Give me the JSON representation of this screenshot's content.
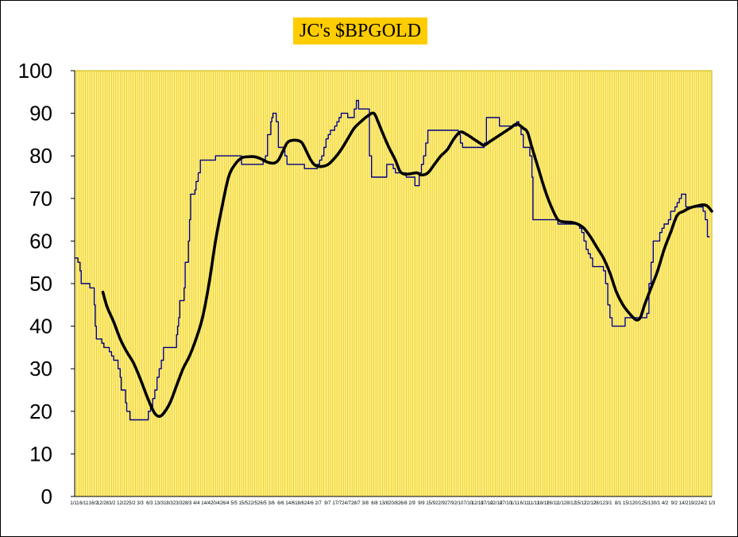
{
  "chart_data": {
    "type": "line",
    "title": "JC's $BPGOLD",
    "xlabel": "",
    "ylabel": "",
    "ylim": [
      0,
      100
    ],
    "yticks": [
      0,
      10,
      20,
      30,
      40,
      50,
      60,
      70,
      80,
      90,
      100
    ],
    "grid": "vertical",
    "plot_background": "#ffee88",
    "title_background": "#ffcc00",
    "xtick_labels": [
      "1/11",
      "6/11",
      "16/2",
      "12/28",
      "3/2",
      "12/2",
      "25/2",
      "3/3",
      "6/3",
      "13/3",
      "18/3",
      "23/3",
      "28/3",
      "4/4",
      "14/4",
      "20/4",
      "26/4",
      "5/5",
      "15/5",
      "22/5",
      "26/5",
      "3/6",
      "6/6",
      "14/6",
      "18/6",
      "24/6",
      "2/7",
      "9/7",
      "17/7",
      "24/7",
      "28/7",
      "3/8",
      "6/8",
      "13/8",
      "20/8",
      "26/8",
      "2/9",
      "9/9",
      "15/9",
      "22/9",
      "27/9",
      "2/10",
      "7/10",
      "12/10",
      "17/10",
      "22/10",
      "27/10",
      "1/11",
      "6/11",
      "11/11",
      "18/11",
      "26/11",
      "1/12",
      "8/12",
      "15/12",
      "22/12",
      "28/12",
      "3/1",
      "8/1",
      "15/1",
      "20/1",
      "25/1",
      "30/1",
      "4/2",
      "9/2",
      "14/2",
      "19/2",
      "24/2",
      "1/3"
    ],
    "series": [
      {
        "color": "#000080",
        "style": "step",
        "points": [
          [
            0,
            56
          ],
          [
            1.5,
            55
          ],
          [
            2.5,
            53
          ],
          [
            3,
            50
          ],
          [
            6,
            50
          ],
          [
            7,
            49
          ],
          [
            8,
            49
          ],
          [
            9,
            45
          ],
          [
            9.5,
            40
          ],
          [
            10,
            37
          ],
          [
            12,
            37
          ],
          [
            12.5,
            36
          ],
          [
            13.5,
            35
          ],
          [
            15,
            35
          ],
          [
            16,
            34
          ],
          [
            17,
            33
          ],
          [
            18,
            32
          ],
          [
            19,
            32
          ],
          [
            20,
            30
          ],
          [
            21,
            28
          ],
          [
            21.5,
            25
          ],
          [
            22.5,
            25
          ],
          [
            23.5,
            22
          ],
          [
            24,
            20
          ],
          [
            25,
            20
          ],
          [
            25.5,
            18
          ],
          [
            33,
            18
          ],
          [
            34,
            20
          ],
          [
            35,
            21
          ],
          [
            36,
            23
          ],
          [
            37,
            25
          ],
          [
            38,
            28
          ],
          [
            39,
            30
          ],
          [
            40,
            32
          ],
          [
            41,
            35
          ],
          [
            45,
            35
          ],
          [
            46,
            35
          ],
          [
            47,
            38
          ],
          [
            47.5,
            40
          ],
          [
            48,
            42
          ],
          [
            48.5,
            46
          ],
          [
            50,
            46
          ],
          [
            50.5,
            49
          ],
          [
            51,
            55
          ],
          [
            52,
            55
          ],
          [
            52.5,
            60
          ],
          [
            53,
            65
          ],
          [
            53.5,
            71
          ],
          [
            55,
            71
          ],
          [
            55.5,
            72
          ],
          [
            56,
            74
          ],
          [
            57,
            76
          ],
          [
            58,
            79
          ],
          [
            64,
            79
          ],
          [
            65,
            80
          ],
          [
            76,
            80
          ],
          [
            77,
            78
          ],
          [
            86,
            78
          ],
          [
            87,
            79
          ],
          [
            88,
            80
          ],
          [
            89,
            85
          ],
          [
            90,
            85
          ],
          [
            90.5,
            88
          ],
          [
            91,
            89
          ],
          [
            91.5,
            90
          ],
          [
            92,
            90
          ],
          [
            93,
            88
          ],
          [
            94,
            82
          ],
          [
            96,
            82
          ],
          [
            97,
            80
          ],
          [
            98,
            78
          ],
          [
            105,
            78
          ],
          [
            106,
            77
          ],
          [
            111,
            77
          ],
          [
            112,
            78
          ],
          [
            113,
            79
          ],
          [
            114,
            80
          ],
          [
            115,
            82
          ],
          [
            116,
            84
          ],
          [
            117,
            85
          ],
          [
            118,
            86
          ],
          [
            119,
            86
          ],
          [
            120,
            87
          ],
          [
            121,
            88
          ],
          [
            122,
            89
          ],
          [
            123,
            90
          ],
          [
            125,
            90
          ],
          [
            126,
            89
          ],
          [
            128,
            89
          ],
          [
            129,
            91
          ],
          [
            130,
            93
          ],
          [
            131,
            91
          ],
          [
            135,
            91
          ],
          [
            136,
            80
          ],
          [
            137,
            75
          ],
          [
            143,
            75
          ],
          [
            144,
            78
          ],
          [
            146,
            78
          ],
          [
            147,
            77
          ],
          [
            148,
            76
          ],
          [
            152,
            76
          ],
          [
            153,
            75
          ],
          [
            156,
            75
          ],
          [
            157,
            73
          ],
          [
            158,
            73
          ],
          [
            159,
            76
          ],
          [
            160,
            78
          ],
          [
            161,
            80
          ],
          [
            162,
            83
          ],
          [
            163,
            86
          ],
          [
            176,
            86
          ],
          [
            177,
            85
          ],
          [
            178,
            83
          ],
          [
            179,
            82
          ],
          [
            188,
            82
          ],
          [
            189,
            83
          ],
          [
            190,
            89
          ],
          [
            195,
            89
          ],
          [
            196,
            87
          ],
          [
            203,
            87
          ],
          [
            204,
            88
          ],
          [
            205,
            87
          ],
          [
            206,
            85
          ],
          [
            207,
            82
          ],
          [
            209,
            82
          ],
          [
            210,
            80
          ],
          [
            211,
            75
          ],
          [
            211.5,
            65
          ],
          [
            222,
            65
          ],
          [
            223,
            64
          ],
          [
            232,
            64
          ],
          [
            233,
            63
          ],
          [
            234,
            62
          ],
          [
            235,
            60
          ],
          [
            236,
            58
          ],
          [
            237,
            57
          ],
          [
            238,
            56
          ],
          [
            239,
            54
          ],
          [
            243,
            54
          ],
          [
            244,
            53
          ],
          [
            245,
            50
          ],
          [
            246,
            45
          ],
          [
            247,
            42
          ],
          [
            248,
            40
          ],
          [
            253,
            40
          ],
          [
            254,
            42
          ],
          [
            261,
            42
          ],
          [
            262,
            42
          ],
          [
            264,
            43
          ],
          [
            265,
            50
          ],
          [
            266,
            55
          ],
          [
            267,
            60
          ],
          [
            269,
            60
          ],
          [
            270,
            62
          ],
          [
            271,
            63
          ],
          [
            272,
            64
          ],
          [
            273,
            64
          ],
          [
            274,
            65
          ],
          [
            275,
            67
          ],
          [
            277,
            68
          ],
          [
            278,
            69
          ],
          [
            279,
            70
          ],
          [
            280,
            71
          ],
          [
            281,
            71
          ],
          [
            282,
            68
          ],
          [
            289,
            68
          ],
          [
            290,
            67
          ],
          [
            291,
            65
          ],
          [
            292,
            61
          ],
          [
            293,
            61
          ]
        ]
      },
      {
        "color": "#000000",
        "style": "smooth",
        "points": [
          [
            13,
            48
          ],
          [
            15,
            44.5
          ],
          [
            18,
            41
          ],
          [
            21,
            37
          ],
          [
            24,
            34
          ],
          [
            27,
            31.5
          ],
          [
            30,
            28
          ],
          [
            33,
            24
          ],
          [
            35,
            21.5
          ],
          [
            37,
            19.5
          ],
          [
            39,
            18.8
          ],
          [
            41,
            19.5
          ],
          [
            44,
            22
          ],
          [
            47,
            26
          ],
          [
            50,
            30
          ],
          [
            53,
            33
          ],
          [
            56,
            37
          ],
          [
            59,
            42
          ],
          [
            62,
            50
          ],
          [
            65,
            60
          ],
          [
            68,
            68
          ],
          [
            71,
            75
          ],
          [
            74,
            78
          ],
          [
            77,
            79.5
          ],
          [
            80,
            79.8
          ],
          [
            83,
            79.8
          ],
          [
            86,
            79.3
          ],
          [
            89,
            78.5
          ],
          [
            92,
            78.3
          ],
          [
            94,
            79
          ],
          [
            96,
            81
          ],
          [
            98,
            83
          ],
          [
            100,
            83.6
          ],
          [
            103,
            83.6
          ],
          [
            105,
            83
          ],
          [
            107,
            81
          ],
          [
            109,
            79
          ],
          [
            111,
            77.8
          ],
          [
            114,
            77.5
          ],
          [
            117,
            78
          ],
          [
            120,
            79.5
          ],
          [
            123,
            81.5
          ],
          [
            126,
            84
          ],
          [
            129,
            86.5
          ],
          [
            132,
            88
          ],
          [
            135,
            89.3
          ],
          [
            138,
            90
          ],
          [
            140,
            88
          ],
          [
            142,
            85.5
          ],
          [
            145,
            82
          ],
          [
            148,
            79
          ],
          [
            150,
            76.5
          ],
          [
            152,
            75.7
          ],
          [
            155,
            75.8
          ],
          [
            158,
            76
          ],
          [
            160,
            75.5
          ],
          [
            163,
            76
          ],
          [
            166,
            78
          ],
          [
            169,
            80
          ],
          [
            172,
            81.5
          ],
          [
            175,
            84
          ],
          [
            178,
            85.6
          ],
          [
            181,
            85
          ],
          [
            184,
            84
          ],
          [
            187,
            83
          ],
          [
            189,
            82.5
          ],
          [
            192,
            83.5
          ],
          [
            195,
            84.5
          ],
          [
            198,
            85.5
          ],
          [
            201,
            86.5
          ],
          [
            204,
            87.5
          ],
          [
            207,
            86.5
          ],
          [
            209,
            85.5
          ],
          [
            211,
            82
          ],
          [
            214,
            77
          ],
          [
            217,
            72
          ],
          [
            220,
            68
          ],
          [
            223,
            65
          ],
          [
            226,
            64.5
          ],
          [
            229,
            64.4
          ],
          [
            232,
            64
          ],
          [
            235,
            63
          ],
          [
            238,
            61
          ],
          [
            241,
            58.5
          ],
          [
            244,
            56
          ],
          [
            247,
            52.5
          ],
          [
            250,
            48
          ],
          [
            253,
            45
          ],
          [
            256,
            43
          ],
          [
            259,
            41.5
          ],
          [
            261,
            42
          ],
          [
            263,
            45
          ],
          [
            266,
            49
          ],
          [
            269,
            53
          ],
          [
            272,
            58
          ],
          [
            275,
            62
          ],
          [
            278,
            66
          ],
          [
            281,
            67
          ],
          [
            284,
            67.8
          ],
          [
            287,
            68.2
          ],
          [
            290,
            68.5
          ],
          [
            292,
            68.2
          ],
          [
            294,
            67
          ]
        ]
      }
    ]
  }
}
